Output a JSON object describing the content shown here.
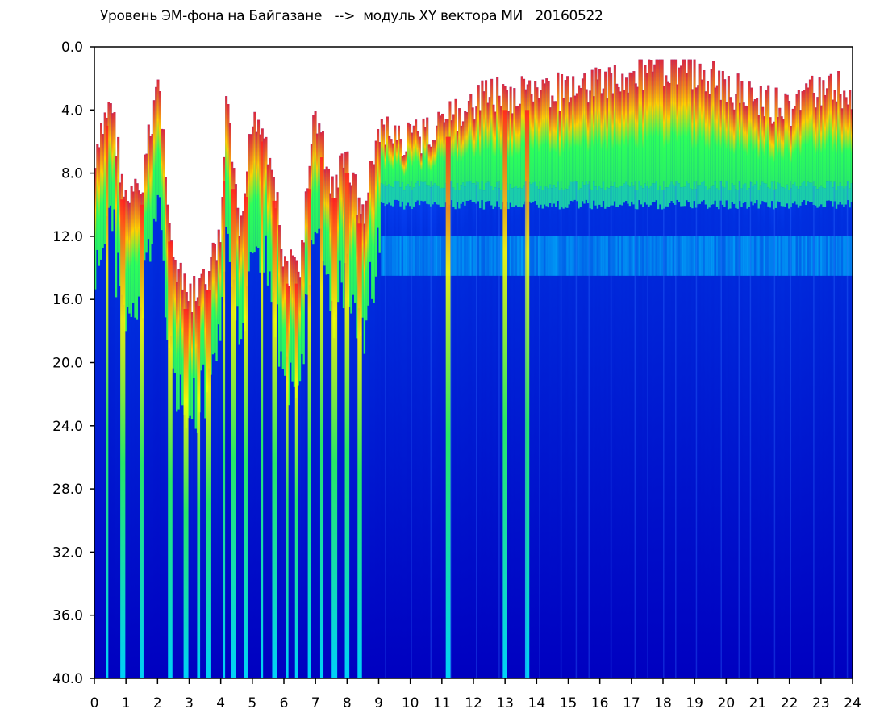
{
  "chart_data": {
    "type": "heatmap",
    "title": "Уровень ЭМ-фона на Байгазане   -->  модуль XY вектора МИ   20160522",
    "xlabel": "",
    "ylabel": "",
    "xlim": [
      0,
      24
    ],
    "ylim": [
      0,
      40
    ],
    "y_inverted": true,
    "x_ticks": [
      "0",
      "1",
      "2",
      "3",
      "4",
      "5",
      "6",
      "7",
      "8",
      "9",
      "10",
      "11",
      "12",
      "13",
      "14",
      "15",
      "16",
      "17",
      "18",
      "19",
      "20",
      "21",
      "22",
      "23",
      "24"
    ],
    "y_ticks": [
      "0.0",
      "4.0",
      "8.0",
      "12.0",
      "16.0",
      "20.0",
      "24.0",
      "28.0",
      "32.0",
      "36.0",
      "40.0"
    ],
    "grid": false,
    "colorscale": [
      "#0000c8",
      "#0a4dff",
      "#00e8ff",
      "#2cff5a",
      "#ffff00",
      "#ff2020"
    ],
    "background_color": "#ffffff",
    "signal_top_profile": {
      "x": [
        0,
        0.3,
        0.5,
        0.7,
        1.0,
        1.5,
        2.0,
        2.2,
        2.5,
        3.0,
        3.5,
        4.0,
        4.2,
        4.6,
        5.0,
        5.3,
        5.6,
        6.0,
        6.5,
        7.0,
        7.5,
        8.0,
        8.5,
        9.0,
        9.5,
        10,
        11,
        12,
        13,
        14,
        15,
        16,
        17,
        18,
        18.5,
        19,
        20,
        21,
        22,
        23,
        24
      ],
      "depth": [
        8,
        5,
        3,
        6,
        10,
        9,
        2,
        6,
        14,
        16,
        15,
        12,
        3,
        13,
        4,
        5,
        7,
        14,
        14,
        4,
        9,
        7,
        11,
        5,
        6,
        6,
        5,
        3.5,
        3,
        3,
        2.8,
        2.2,
        1.8,
        1.3,
        1.2,
        1.6,
        2.5,
        3.5,
        4,
        2.5,
        3
      ]
    },
    "bands": {
      "red_yellow_green_cap_depth": [
        2,
        8.5
      ],
      "cyan_band_depth": [
        12,
        14.5
      ],
      "deep_blue_from_depth": 15
    },
    "bright_streak_hours": [
      0.4,
      0.9,
      1.5,
      2.4,
      2.9,
      3.3,
      3.6,
      4.1,
      4.4,
      4.8,
      5.3,
      5.7,
      6.1,
      6.4,
      6.8,
      7.2,
      7.6,
      8.0,
      8.4,
      11.2,
      13.0,
      13.7
    ]
  }
}
